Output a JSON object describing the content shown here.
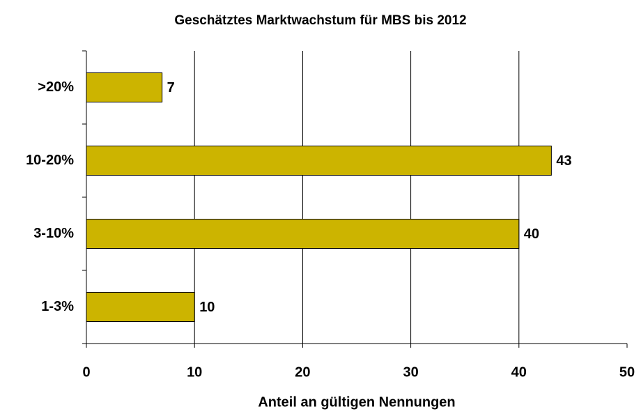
{
  "chart_data": {
    "type": "barh",
    "title": "Geschätztes Marktwachstum für MBS bis 2012",
    "xlabel": "Anteil an gültigen Nennungen",
    "categories": [
      ">20%",
      "10-20%",
      "3-10%",
      "1-3%"
    ],
    "values": [
      7,
      43,
      40,
      10
    ],
    "color": "#ccb400",
    "xlim": [
      0,
      50
    ],
    "xticks": [
      0,
      10,
      20,
      30,
      40,
      50
    ],
    "grid": true
  }
}
